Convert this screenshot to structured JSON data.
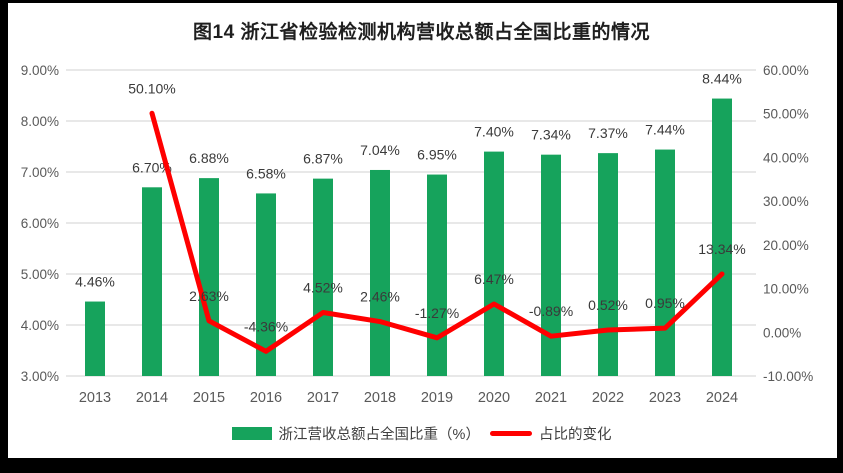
{
  "chart_data": {
    "type": "bar+line combo",
    "title": "图14  浙江省检验检测机构营收总额占全国比重的情况",
    "categories": [
      "2013",
      "2014",
      "2015",
      "2016",
      "2017",
      "2018",
      "2019",
      "2020",
      "2021",
      "2022",
      "2023",
      "2024"
    ],
    "series": [
      {
        "name": "浙江营收总额占全国比重（%）",
        "type": "bar",
        "axis": "left",
        "color": "#16A35C",
        "values": [
          4.46,
          6.7,
          6.88,
          6.58,
          6.87,
          7.04,
          6.95,
          7.4,
          7.34,
          7.37,
          7.44,
          8.44
        ],
        "labels": [
          "4.46%",
          "6.70%",
          "6.88%",
          "6.58%",
          "6.87%",
          "7.04%",
          "6.95%",
          "7.40%",
          "7.34%",
          "7.37%",
          "7.44%",
          "8.44%"
        ]
      },
      {
        "name": "占比的变化",
        "type": "line",
        "axis": "right",
        "color": "#FF0000",
        "values": [
          null,
          50.1,
          2.63,
          -4.36,
          4.52,
          2.46,
          -1.27,
          6.47,
          -0.89,
          0.52,
          0.95,
          13.34
        ],
        "labels": [
          null,
          "50.10%",
          "2.63%",
          "-4.36%",
          "4.52%",
          "2.46%",
          "-1.27%",
          "6.47%",
          "-0.89%",
          "0.52%",
          "0.95%",
          "13.34%"
        ]
      }
    ],
    "axes": {
      "left": {
        "min": 3,
        "max": 9,
        "ticks": [
          {
            "value": 9,
            "label": "9.00%"
          },
          {
            "value": 8,
            "label": "8.00%"
          },
          {
            "value": 7,
            "label": "7.00%"
          },
          {
            "value": 6,
            "label": "6.00%"
          },
          {
            "value": 5,
            "label": "5.00%"
          },
          {
            "value": 4,
            "label": "4.00%"
          },
          {
            "value": 3,
            "label": "3.00%"
          }
        ]
      },
      "right": {
        "min": -10,
        "max": 60,
        "ticks": [
          {
            "value": 60,
            "label": "60.00%"
          },
          {
            "value": 50,
            "label": "50.00%"
          },
          {
            "value": 40,
            "label": "40.00%"
          },
          {
            "value": 30,
            "label": "30.00%"
          },
          {
            "value": 20,
            "label": "20.00%"
          },
          {
            "value": 10,
            "label": "10.00%"
          },
          {
            "value": 0,
            "label": "0.00%"
          },
          {
            "value": -10,
            "label": "-10.00%"
          }
        ]
      }
    },
    "grid": true,
    "legend_position": "bottom",
    "colors": {
      "frame": "#000000",
      "background": "#FFFFFF",
      "grid": "#D9D9D9",
      "axis_text": "#595959",
      "data_label": "#3A3A3A"
    }
  }
}
